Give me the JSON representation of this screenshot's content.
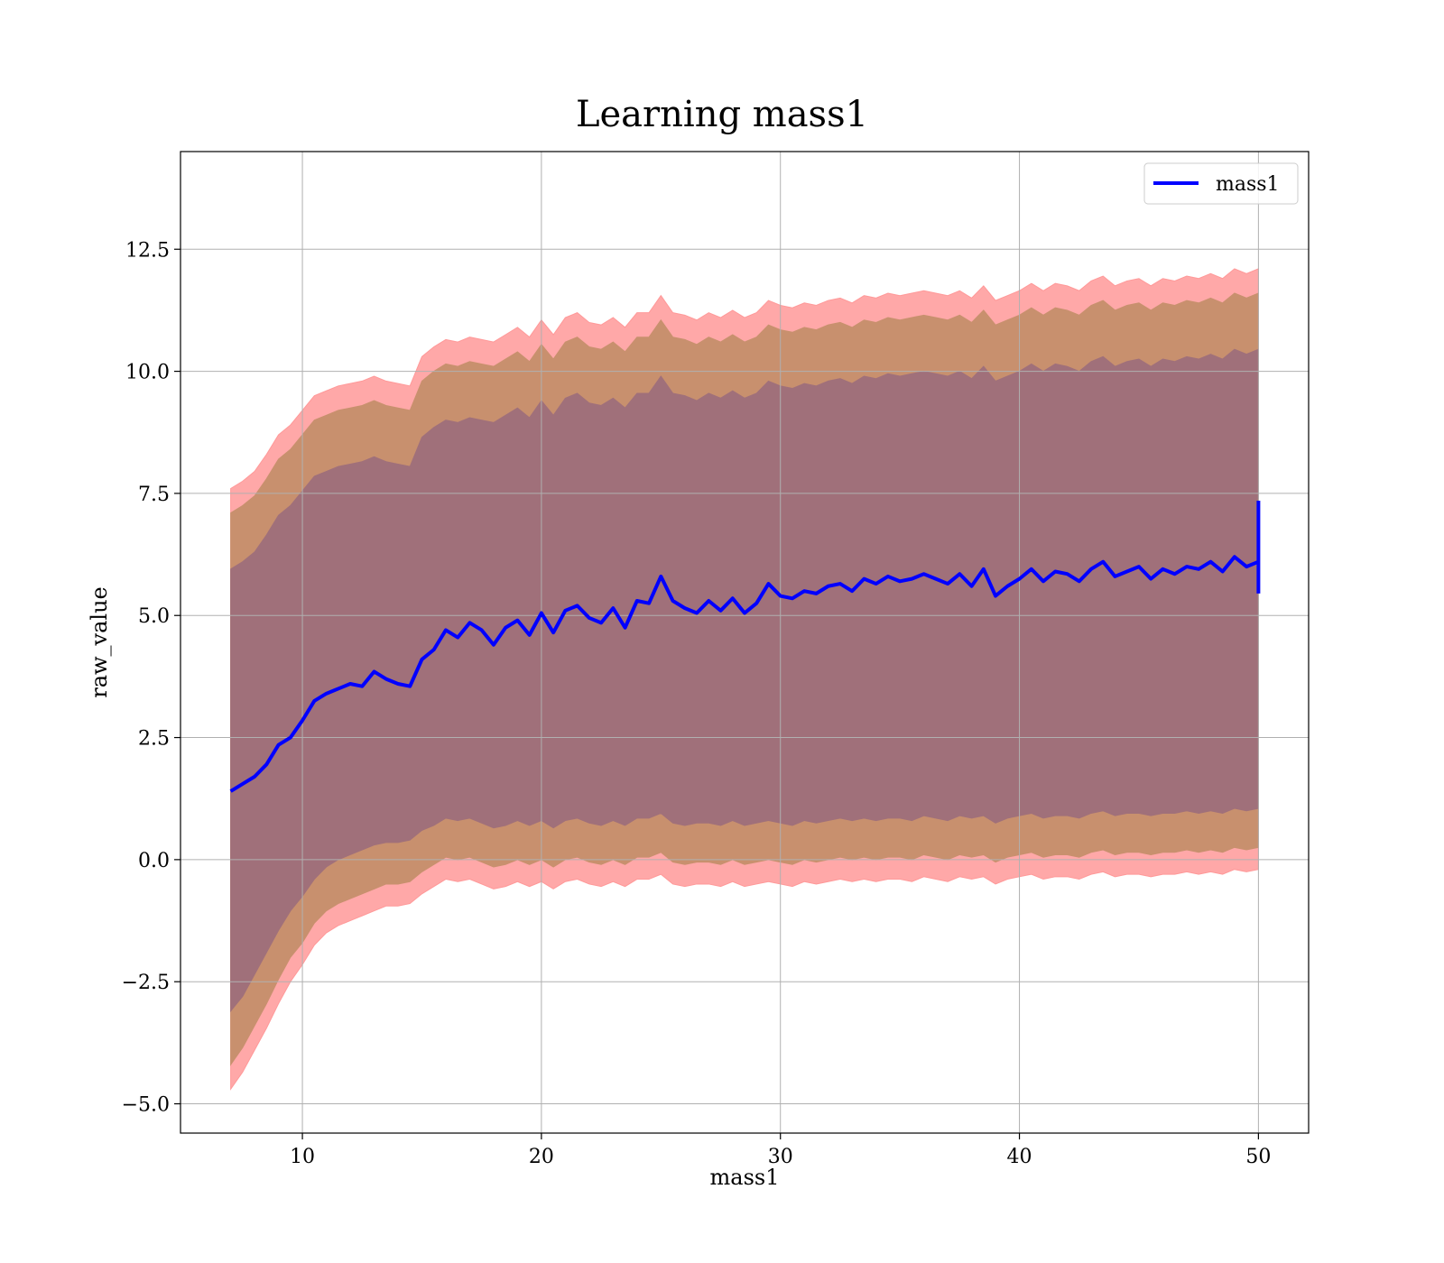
{
  "chart_data": {
    "type": "line",
    "title": "Learning mass1",
    "xlabel": "mass1",
    "ylabel": "raw_value",
    "xlim": [
      4.9,
      52.1
    ],
    "ylim": [
      -5.6,
      14.5
    ],
    "x_ticks": [
      10,
      20,
      30,
      40,
      50
    ],
    "x_tick_labels": [
      "10",
      "20",
      "30",
      "40",
      "50"
    ],
    "y_ticks": [
      -5.0,
      -2.5,
      0.0,
      2.5,
      5.0,
      7.5,
      10.0,
      12.5
    ],
    "y_tick_labels": [
      "−5.0",
      "−2.5",
      "0.0",
      "2.5",
      "5.0",
      "7.5",
      "10.0",
      "12.5"
    ],
    "grid": true,
    "legend_position": "top-right",
    "series": [
      {
        "name": "mass1",
        "color": "#0000ff",
        "x": [
          7.0,
          7.5,
          8.0,
          8.5,
          9.0,
          9.5,
          10.0,
          10.5,
          11.0,
          11.5,
          12.0,
          12.5,
          13.0,
          13.5,
          14.0,
          14.5,
          15.0,
          15.5,
          16.0,
          16.5,
          17.0,
          17.5,
          18.0,
          18.5,
          19.0,
          19.5,
          20.0,
          20.5,
          21.0,
          21.5,
          22.0,
          22.5,
          23.0,
          23.5,
          24.0,
          24.5,
          25.0,
          25.5,
          26.0,
          26.5,
          27.0,
          27.5,
          28.0,
          28.5,
          29.0,
          29.5,
          30.0,
          30.5,
          31.0,
          31.5,
          32.0,
          32.5,
          33.0,
          33.5,
          34.0,
          34.5,
          35.0,
          35.5,
          36.0,
          36.5,
          37.0,
          37.5,
          38.0,
          38.5,
          39.0,
          39.5,
          40.0,
          40.5,
          41.0,
          41.5,
          42.0,
          42.5,
          43.0,
          43.5,
          44.0,
          44.5,
          45.0,
          45.5,
          46.0,
          46.5,
          47.0,
          47.5,
          48.0,
          48.5,
          49.0,
          49.5,
          50.0
        ],
        "y": [
          1.4,
          1.55,
          1.7,
          1.95,
          2.35,
          2.5,
          2.85,
          3.25,
          3.4,
          3.5,
          3.6,
          3.55,
          3.85,
          3.7,
          3.6,
          3.55,
          4.1,
          4.3,
          4.7,
          4.55,
          4.85,
          4.7,
          4.4,
          4.75,
          4.9,
          4.6,
          5.05,
          4.65,
          5.1,
          5.2,
          4.95,
          4.85,
          5.15,
          4.75,
          5.3,
          5.25,
          5.8,
          5.3,
          5.15,
          5.05,
          5.3,
          5.1,
          5.35,
          5.05,
          5.25,
          5.65,
          5.4,
          5.35,
          5.5,
          5.45,
          5.6,
          5.65,
          5.5,
          5.75,
          5.65,
          5.8,
          5.7,
          5.75,
          5.85,
          5.75,
          5.65,
          5.85,
          5.6,
          5.95,
          5.4,
          5.6,
          5.75,
          5.95,
          5.7,
          5.9,
          5.85,
          5.7,
          5.95,
          6.1,
          5.8,
          5.9,
          6.0,
          5.75,
          5.95,
          5.85,
          6.0,
          5.95,
          6.1,
          5.9,
          6.2,
          6.0,
          6.1
        ],
        "end_spike": [
          5.45,
          7.35
        ]
      }
    ],
    "bands": [
      {
        "level": "outer",
        "color": "#ff9999",
        "lower": [
          -4.7,
          -4.35,
          -3.9,
          -3.45,
          -2.95,
          -2.5,
          -2.15,
          -1.75,
          -1.5,
          -1.35,
          -1.25,
          -1.15,
          -1.05,
          -0.95,
          -0.95,
          -0.9,
          -0.7,
          -0.55,
          -0.4,
          -0.45,
          -0.4,
          -0.5,
          -0.6,
          -0.55,
          -0.45,
          -0.55,
          -0.45,
          -0.6,
          -0.45,
          -0.4,
          -0.5,
          -0.55,
          -0.45,
          -0.55,
          -0.4,
          -0.4,
          -0.3,
          -0.5,
          -0.55,
          -0.5,
          -0.5,
          -0.55,
          -0.45,
          -0.55,
          -0.5,
          -0.45,
          -0.5,
          -0.55,
          -0.45,
          -0.5,
          -0.45,
          -0.4,
          -0.45,
          -0.4,
          -0.45,
          -0.4,
          -0.4,
          -0.45,
          -0.35,
          -0.4,
          -0.45,
          -0.35,
          -0.4,
          -0.35,
          -0.5,
          -0.4,
          -0.35,
          -0.3,
          -0.4,
          -0.35,
          -0.35,
          -0.4,
          -0.3,
          -0.25,
          -0.35,
          -0.3,
          -0.3,
          -0.35,
          -0.3,
          -0.3,
          -0.25,
          -0.3,
          -0.25,
          -0.3,
          -0.2,
          -0.25,
          -0.2
        ],
        "upper": [
          7.6,
          7.75,
          7.95,
          8.3,
          8.7,
          8.9,
          9.2,
          9.5,
          9.6,
          9.7,
          9.75,
          9.8,
          9.9,
          9.8,
          9.75,
          9.7,
          10.3,
          10.5,
          10.65,
          10.6,
          10.7,
          10.65,
          10.6,
          10.75,
          10.9,
          10.7,
          11.05,
          10.75,
          11.1,
          11.2,
          11.0,
          10.95,
          11.1,
          10.9,
          11.2,
          11.2,
          11.55,
          11.2,
          11.15,
          11.05,
          11.2,
          11.1,
          11.25,
          11.1,
          11.2,
          11.45,
          11.35,
          11.3,
          11.4,
          11.35,
          11.45,
          11.5,
          11.4,
          11.55,
          11.5,
          11.6,
          11.55,
          11.6,
          11.65,
          11.6,
          11.55,
          11.65,
          11.5,
          11.75,
          11.45,
          11.55,
          11.65,
          11.8,
          11.65,
          11.8,
          11.75,
          11.65,
          11.85,
          11.95,
          11.75,
          11.85,
          11.9,
          11.75,
          11.9,
          11.85,
          11.95,
          11.9,
          12.0,
          11.9,
          12.1,
          12.0,
          12.1
        ]
      },
      {
        "level": "middle",
        "color": "#c8906e",
        "lower": [
          -4.2,
          -3.85,
          -3.4,
          -2.95,
          -2.45,
          -2.0,
          -1.7,
          -1.3,
          -1.05,
          -0.9,
          -0.8,
          -0.7,
          -0.6,
          -0.5,
          -0.5,
          -0.45,
          -0.25,
          -0.1,
          0.05,
          0.0,
          0.05,
          -0.05,
          -0.15,
          -0.1,
          0.0,
          -0.1,
          0.0,
          -0.15,
          0.0,
          0.05,
          -0.05,
          -0.1,
          0.0,
          -0.1,
          0.05,
          0.05,
          0.15,
          -0.05,
          -0.1,
          -0.05,
          -0.05,
          -0.1,
          0.0,
          -0.1,
          -0.05,
          0.0,
          -0.05,
          -0.1,
          0.0,
          -0.05,
          0.0,
          0.05,
          0.0,
          0.05,
          0.0,
          0.05,
          0.05,
          0.0,
          0.1,
          0.05,
          0.0,
          0.1,
          0.05,
          0.1,
          -0.05,
          0.05,
          0.1,
          0.15,
          0.05,
          0.1,
          0.1,
          0.05,
          0.15,
          0.2,
          0.1,
          0.15,
          0.15,
          0.1,
          0.15,
          0.15,
          0.2,
          0.15,
          0.2,
          0.15,
          0.25,
          0.2,
          0.25
        ],
        "upper": [
          7.1,
          7.25,
          7.45,
          7.8,
          8.2,
          8.4,
          8.7,
          9.0,
          9.1,
          9.2,
          9.25,
          9.3,
          9.4,
          9.3,
          9.25,
          9.2,
          9.8,
          10.0,
          10.15,
          10.1,
          10.2,
          10.15,
          10.1,
          10.25,
          10.4,
          10.2,
          10.55,
          10.25,
          10.6,
          10.7,
          10.5,
          10.45,
          10.6,
          10.4,
          10.7,
          10.7,
          11.05,
          10.7,
          10.65,
          10.55,
          10.7,
          10.6,
          10.75,
          10.6,
          10.7,
          10.95,
          10.85,
          10.8,
          10.9,
          10.85,
          10.95,
          11.0,
          10.9,
          11.05,
          11.0,
          11.1,
          11.05,
          11.1,
          11.15,
          11.1,
          11.05,
          11.15,
          11.0,
          11.25,
          10.95,
          11.05,
          11.15,
          11.3,
          11.15,
          11.3,
          11.25,
          11.15,
          11.35,
          11.45,
          11.25,
          11.35,
          11.4,
          11.25,
          11.4,
          11.35,
          11.45,
          11.4,
          11.5,
          11.4,
          11.6,
          11.5,
          11.6
        ]
      },
      {
        "level": "inner",
        "color": "#a0707a",
        "lower": [
          -3.1,
          -2.8,
          -2.35,
          -1.9,
          -1.45,
          -1.05,
          -0.75,
          -0.4,
          -0.15,
          0.0,
          0.1,
          0.2,
          0.3,
          0.35,
          0.35,
          0.4,
          0.6,
          0.7,
          0.85,
          0.8,
          0.85,
          0.75,
          0.65,
          0.7,
          0.8,
          0.7,
          0.8,
          0.65,
          0.8,
          0.85,
          0.75,
          0.7,
          0.8,
          0.7,
          0.85,
          0.85,
          0.95,
          0.75,
          0.7,
          0.75,
          0.75,
          0.7,
          0.8,
          0.7,
          0.75,
          0.8,
          0.75,
          0.7,
          0.8,
          0.75,
          0.8,
          0.85,
          0.8,
          0.85,
          0.8,
          0.85,
          0.85,
          0.8,
          0.9,
          0.85,
          0.8,
          0.9,
          0.85,
          0.9,
          0.75,
          0.85,
          0.9,
          0.95,
          0.85,
          0.9,
          0.9,
          0.85,
          0.95,
          1.0,
          0.9,
          0.95,
          0.95,
          0.9,
          0.95,
          0.95,
          1.0,
          0.95,
          1.0,
          0.95,
          1.05,
          1.0,
          1.05
        ],
        "upper": [
          5.95,
          6.1,
          6.3,
          6.65,
          7.05,
          7.25,
          7.55,
          7.85,
          7.95,
          8.05,
          8.1,
          8.15,
          8.25,
          8.15,
          8.1,
          8.05,
          8.65,
          8.85,
          9.0,
          8.95,
          9.05,
          9.0,
          8.95,
          9.1,
          9.25,
          9.05,
          9.4,
          9.1,
          9.45,
          9.55,
          9.35,
          9.3,
          9.45,
          9.25,
          9.55,
          9.55,
          9.9,
          9.55,
          9.5,
          9.4,
          9.55,
          9.45,
          9.6,
          9.45,
          9.55,
          9.8,
          9.7,
          9.65,
          9.75,
          9.7,
          9.8,
          9.85,
          9.75,
          9.9,
          9.85,
          9.95,
          9.9,
          9.95,
          10.0,
          9.95,
          9.9,
          10.0,
          9.85,
          10.1,
          9.8,
          9.9,
          10.0,
          10.15,
          10.0,
          10.15,
          10.1,
          10.0,
          10.2,
          10.3,
          10.1,
          10.2,
          10.25,
          10.1,
          10.25,
          10.2,
          10.3,
          10.25,
          10.35,
          10.25,
          10.45,
          10.35,
          10.45
        ]
      }
    ]
  }
}
